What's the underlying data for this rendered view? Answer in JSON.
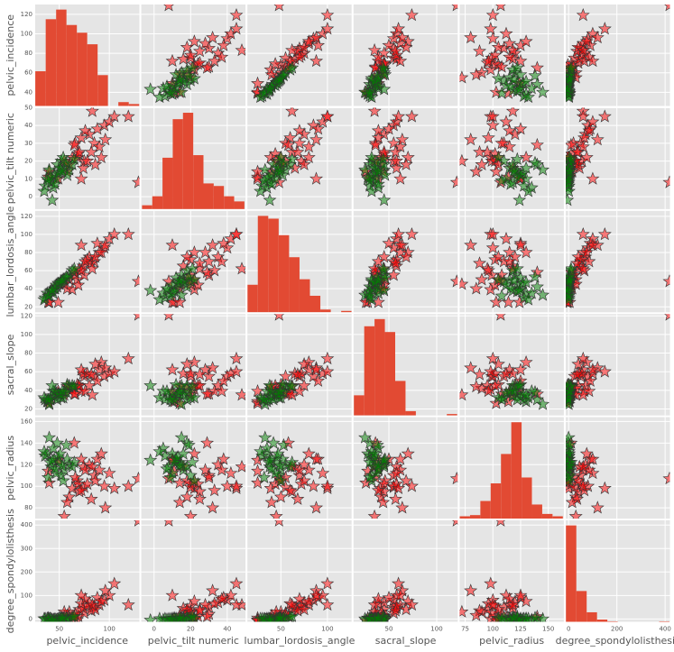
{
  "chart_data": {
    "type": "scatter_matrix",
    "hist_color": "#e24a33",
    "grid": true,
    "variables": [
      {
        "name": "pelvic_incidence",
        "lim": [
          26,
          130
        ],
        "xticks": [
          50,
          100
        ],
        "yticks": [
          40,
          60,
          80,
          100,
          120
        ],
        "bins": [
          26.1,
          36.5,
          46.9,
          57.2,
          67.6,
          77.9,
          88.3,
          98.6,
          109.0,
          119.4,
          129.8
        ],
        "counts": [
          18,
          45,
          50,
          42,
          38,
          32,
          16,
          0,
          2,
          1
        ]
      },
      {
        "name": "pelvic_tilt numeric",
        "lim": [
          -7,
          50
        ],
        "xticks": [
          0,
          20,
          40
        ],
        "yticks": [
          0,
          10,
          20,
          30,
          40,
          50
        ],
        "bins": [
          -6.6,
          -1.0,
          4.6,
          10.2,
          15.8,
          21.4,
          27.0,
          32.6,
          38.2,
          43.8,
          49.4
        ],
        "counts": [
          3,
          10,
          40,
          70,
          75,
          42,
          20,
          18,
          10,
          6
        ]
      },
      {
        "name": "lumbar_lordosis_angle",
        "lim": [
          14,
          126
        ],
        "xticks": [
          50,
          100
        ],
        "yticks": [
          20,
          40,
          60,
          80,
          100,
          120
        ],
        "bins": [
          14.0,
          25.2,
          36.4,
          47.6,
          58.8,
          70.0,
          81.2,
          92.4,
          103.6,
          114.8,
          126.0
        ],
        "counts": [
          20,
          70,
          68,
          56,
          40,
          24,
          12,
          2,
          0,
          1
        ]
      },
      {
        "name": "sacral_slope",
        "lim": [
          13,
          122
        ],
        "xticks": [
          50,
          100
        ],
        "yticks": [
          20,
          40,
          60,
          80,
          100,
          120
        ],
        "bins": [
          13.4,
          24.2,
          35.0,
          45.8,
          56.6,
          67.4,
          78.2,
          89.0,
          99.8,
          110.6,
          121.4
        ],
        "counts": [
          14,
          62,
          67,
          58,
          24,
          3,
          0,
          0,
          0,
          1
        ]
      },
      {
        "name": "pelvic_radius",
        "lim": [
          70,
          164
        ],
        "xticks": [
          75,
          100,
          125,
          150
        ],
        "yticks": [
          80,
          100,
          120,
          140,
          160
        ],
        "bins": [
          70.1,
          79.4,
          88.7,
          98.0,
          107.3,
          116.6,
          125.9,
          135.2,
          144.5,
          153.8,
          163.1
        ],
        "counts": [
          2,
          3,
          15,
          30,
          55,
          82,
          35,
          12,
          4,
          2
        ]
      },
      {
        "name": "degree_spondylolisthesis",
        "lim": [
          -12,
          420
        ],
        "xticks": [
          0,
          200,
          400
        ],
        "yticks": [
          0,
          100,
          200,
          300,
          400
        ],
        "bins": [
          -11.1,
          31.9,
          74.8,
          117.7,
          160.6,
          203.5,
          246.4,
          289.3,
          332.2,
          375.1,
          418.0
        ],
        "counts": [
          213,
          68,
          21,
          5,
          1,
          0,
          0,
          0,
          0,
          1
        ]
      }
    ],
    "series": [
      {
        "color": "#ff0000",
        "values": [
          [
            63,
            22,
            39,
            41,
            98,
            0
          ],
          [
            39,
            11,
            25,
            28,
            114,
            4
          ],
          [
            68,
            22,
            50,
            46,
            105,
            -3
          ],
          [
            69,
            24,
            44,
            45,
            102,
            11
          ],
          [
            49,
            10,
            25,
            39,
            124,
            -4
          ],
          [
            40,
            14,
            25,
            26,
            103,
            -7
          ],
          [
            75,
            20,
            55,
            55,
            99,
            25
          ],
          [
            85,
            30,
            70,
            55,
            110,
            50
          ],
          [
            90,
            28,
            80,
            62,
            115,
            60
          ],
          [
            70,
            25,
            62,
            45,
            95,
            40
          ],
          [
            80,
            35,
            75,
            45,
            120,
            70
          ],
          [
            95,
            40,
            85,
            55,
            100,
            80
          ],
          [
            60,
            18,
            50,
            42,
            90,
            30
          ],
          [
            74,
            16,
            65,
            58,
            118,
            45
          ],
          [
            88,
            38,
            90,
            50,
            125,
            90
          ],
          [
            66,
            30,
            55,
            36,
            108,
            20
          ],
          [
            78,
            20,
            72,
            58,
            102,
            55
          ],
          [
            100,
            42,
            95,
            58,
            112,
            100
          ],
          [
            82,
            25,
            68,
            57,
            88,
            35
          ],
          [
            72,
            33,
            60,
            39,
            96,
            65
          ],
          [
            92,
            22,
            80,
            70,
            130,
            75
          ],
          [
            58,
            14,
            40,
            44,
            85,
            15
          ],
          [
            76,
            37,
            70,
            39,
            115,
            85
          ],
          [
            86,
            18,
            75,
            68,
            105,
            40
          ],
          [
            105,
            45,
            100,
            60,
            98,
            150
          ],
          [
            129,
            8,
            48,
            121,
            107,
            418
          ],
          [
            65,
            29,
            58,
            36,
            140,
            10
          ],
          [
            96,
            32,
            88,
            64,
            80,
            120
          ],
          [
            83,
            48,
            62,
            35,
            118,
            60
          ],
          [
            119,
            45,
            100,
            74,
            100,
            60
          ],
          [
            55,
            20,
            45,
            35,
            72,
            30
          ],
          [
            72,
            10,
            88,
            62,
            125,
            100
          ]
        ]
      },
      {
        "color": "#008000",
        "values": [
          [
            38,
            10,
            35,
            28,
            130,
            2
          ],
          [
            45,
            12,
            40,
            33,
            125,
            -1
          ],
          [
            50,
            14,
            45,
            36,
            122,
            3
          ],
          [
            42,
            8,
            38,
            34,
            118,
            0
          ],
          [
            55,
            16,
            50,
            39,
            115,
            5
          ],
          [
            48,
            18,
            42,
            30,
            140,
            -2
          ],
          [
            36,
            6,
            30,
            30,
            128,
            1
          ],
          [
            60,
            15,
            55,
            45,
            120,
            4
          ],
          [
            52,
            20,
            48,
            32,
            110,
            6
          ],
          [
            44,
            5,
            35,
            39,
            135,
            -3
          ],
          [
            58,
            12,
            52,
            46,
            125,
            2
          ],
          [
            40,
            15,
            33,
            25,
            145,
            0
          ],
          [
            47,
            10,
            44,
            37,
            112,
            -4
          ],
          [
            63,
            18,
            60,
            45,
            118,
            8
          ],
          [
            35,
            3,
            28,
            32,
            132,
            1
          ],
          [
            54,
            22,
            50,
            32,
            105,
            3
          ],
          [
            49,
            13,
            46,
            36,
            127,
            -1
          ],
          [
            41,
            11,
            37,
            30,
            122,
            2
          ],
          [
            57,
            19,
            53,
            38,
            138,
            5
          ],
          [
            46,
            7,
            40,
            39,
            116,
            -2
          ],
          [
            65,
            21,
            62,
            44,
            122,
            10
          ],
          [
            39,
            9,
            32,
            30,
            108,
            0
          ],
          [
            51,
            16,
            47,
            35,
            130,
            1
          ],
          [
            43,
            -2,
            38,
            45,
            124,
            -5
          ],
          [
            53,
            14,
            49,
            39,
            119,
            4
          ]
        ]
      }
    ]
  }
}
